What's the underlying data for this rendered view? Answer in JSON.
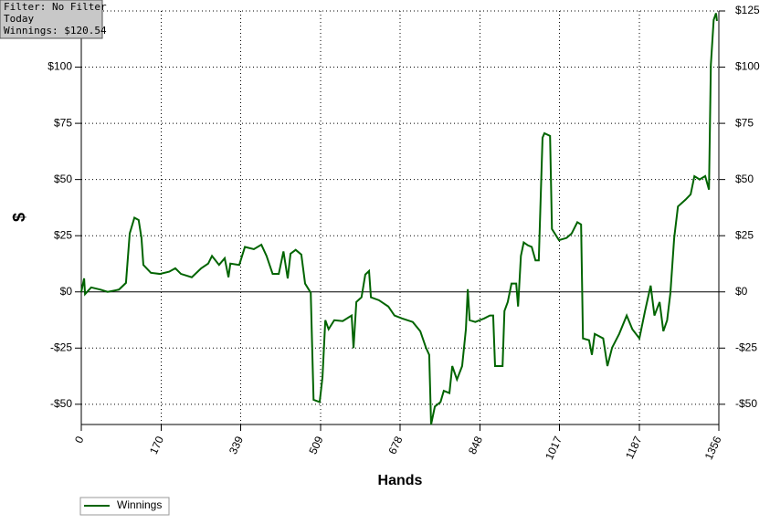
{
  "chart_data": {
    "type": "line",
    "annotations": [
      "Filter: No Filter",
      "Today",
      "Winnings: $120.54"
    ],
    "xlabel": "Hands",
    "ylabel": "$",
    "xlim": [
      0,
      1356
    ],
    "xticks": [
      0,
      170,
      339,
      509,
      678,
      848,
      1017,
      1187,
      1356
    ],
    "ylim": [
      -59,
      125
    ],
    "yticks": [
      {
        "value": 125,
        "label": "$125"
      },
      {
        "value": 100,
        "label": "$100"
      },
      {
        "value": 75,
        "label": "$75"
      },
      {
        "value": 50,
        "label": "$50"
      },
      {
        "value": 25,
        "label": "$25"
      },
      {
        "value": 0,
        "label": "$0"
      },
      {
        "value": -25,
        "label": "-$25"
      },
      {
        "value": -50,
        "label": "-$50"
      }
    ],
    "grid": true,
    "legend": "bottom-left",
    "x": [
      0,
      6,
      8,
      21,
      41,
      56,
      80,
      95,
      103,
      113,
      122,
      128,
      132,
      148,
      167,
      187,
      200,
      212,
      235,
      255,
      270,
      278,
      293,
      305,
      313,
      317,
      336,
      348,
      367,
      383,
      394,
      407,
      420,
      430,
      439,
      445,
      456,
      468,
      476,
      488,
      494,
      507,
      513,
      519,
      526,
      538,
      556,
      575,
      579,
      585,
      596,
      604,
      612,
      616,
      633,
      653,
      666,
      682,
      705,
      721,
      733,
      740,
      744,
      752,
      764,
      771,
      783,
      789,
      799,
      810,
      818,
      822,
      826,
      838,
      857,
      869,
      876,
      880,
      896,
      900,
      907,
      915,
      925,
      929,
      935,
      941,
      950,
      958,
      966,
      973,
      981,
      985,
      997,
      1001,
      1016,
      1032,
      1043,
      1055,
      1063,
      1067,
      1080,
      1086,
      1092,
      1110,
      1119,
      1129,
      1144,
      1160,
      1172,
      1187,
      1199,
      1211,
      1219,
      1230,
      1238,
      1246,
      1253,
      1261,
      1269,
      1285,
      1296,
      1304,
      1315,
      1327,
      1335,
      1339,
      1345,
      1350,
      1352
    ],
    "series": [
      {
        "name": "Winnings",
        "color": "#006400",
        "values": [
          0,
          6,
          -1,
          2,
          1,
          0,
          1,
          4,
          26,
          33,
          32,
          24,
          12,
          8.5,
          8,
          9,
          10.5,
          8,
          6.5,
          10.5,
          12.6,
          16,
          12,
          15,
          6.5,
          12.6,
          12,
          20,
          19,
          21,
          16,
          8,
          8,
          18,
          6,
          17,
          18.7,
          16.6,
          3.7,
          -0.4,
          -48,
          -49,
          -38,
          -12.6,
          -16.6,
          -12.6,
          -13,
          -10.5,
          -25,
          -4.5,
          -2.4,
          7.7,
          9.3,
          -2.4,
          -3.7,
          -6.5,
          -10.5,
          -11.8,
          -13.4,
          -17.5,
          -24.8,
          -28,
          -59,
          -51,
          -49,
          -44,
          -45,
          -33,
          -39,
          -33,
          -16.6,
          1.2,
          -12.6,
          -13.4,
          -11.8,
          -10.5,
          -10.5,
          -33,
          -33,
          -8.5,
          -4.5,
          3.7,
          3.7,
          -6.5,
          16,
          22,
          20.7,
          20,
          14,
          14,
          68.6,
          70.6,
          69.4,
          28,
          23,
          24,
          26,
          31,
          30,
          -20.7,
          -21.5,
          -28,
          -18.7,
          -20.7,
          -33,
          -24.8,
          -18.7,
          -10.5,
          -16.6,
          -20.7,
          -8.5,
          2.8,
          -10.5,
          -4.5,
          -17.5,
          -12.6,
          -0.4,
          24,
          38,
          41,
          43.4,
          51.5,
          50,
          51.5,
          45.5,
          101,
          121,
          124,
          120.54
        ]
      }
    ]
  }
}
